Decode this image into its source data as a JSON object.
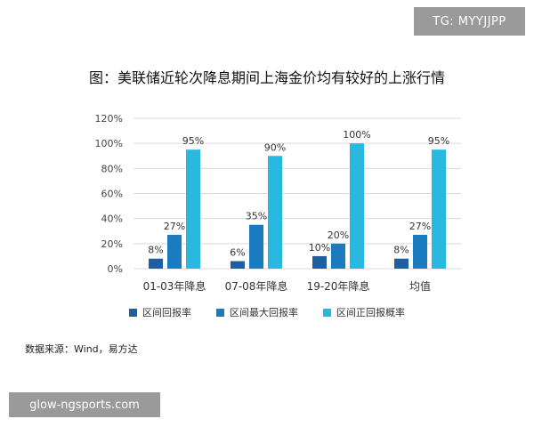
{
  "watermark_top_right": "TG: MYYJJPP",
  "watermark_bottom_left": "glow-ngsports.com",
  "source_text": "数据来源：Wind，易方达",
  "chart_data": {
    "type": "bar",
    "title": "图：美联储近轮次降息期间上海金价均有较好的上涨行情",
    "xlabel": "",
    "ylabel": "",
    "ylim": [
      0,
      120
    ],
    "yticks": [
      "0%",
      "20%",
      "40%",
      "60%",
      "80%",
      "100%",
      "120%"
    ],
    "ytick_values": [
      0,
      20,
      40,
      60,
      80,
      100,
      120
    ],
    "grid": true,
    "legend_position": "bottom",
    "categories": [
      "01-03年降息",
      "07-08年降息",
      "19-20年降息",
      "均值"
    ],
    "series": [
      {
        "name": "区间回报率",
        "color": "#1f5fa0",
        "values": [
          8,
          6,
          10,
          8
        ],
        "labels": [
          "8%",
          "6%",
          "10%",
          "8%"
        ]
      },
      {
        "name": "区间最大回报率",
        "color": "#1a7bbf",
        "values": [
          27,
          35,
          20,
          27
        ],
        "labels": [
          "27%",
          "35%",
          "20%",
          "27%"
        ]
      },
      {
        "name": "区间正回报概率",
        "color": "#29b8e0",
        "values": [
          95,
          90,
          100,
          95
        ],
        "labels": [
          "95%",
          "90%",
          "100%",
          "95%"
        ]
      }
    ]
  }
}
